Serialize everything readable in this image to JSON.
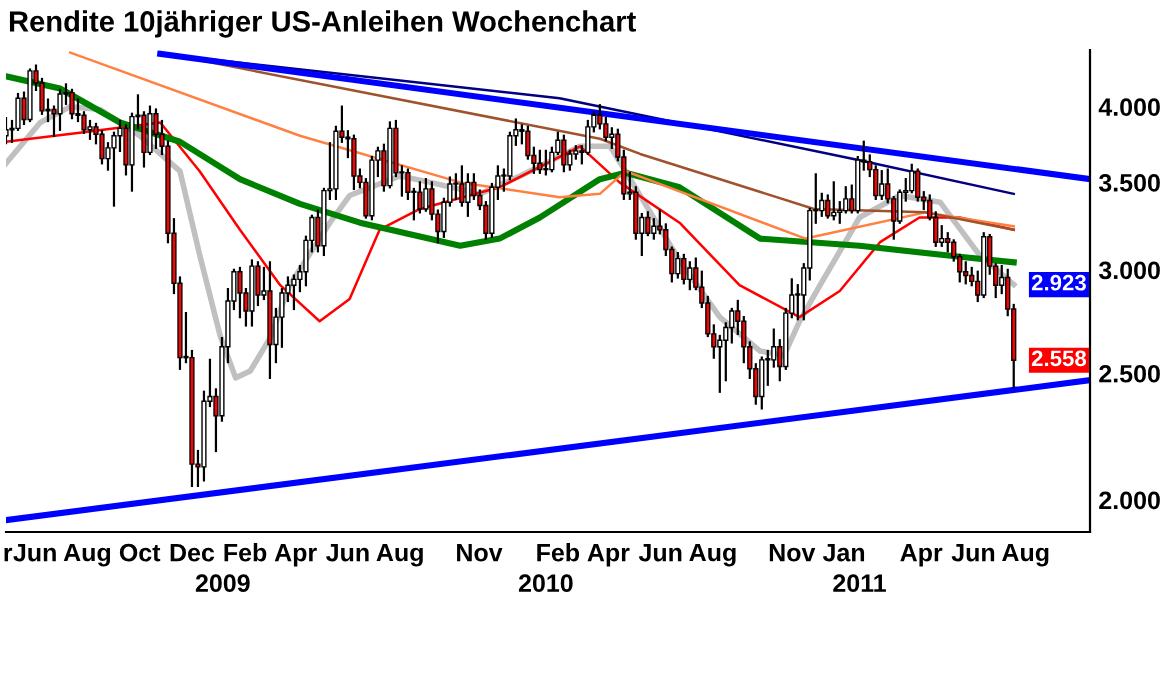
{
  "chart_data": {
    "type": "candlestick",
    "title": "Rendite 10jähriger US-Anleihen Wochenchart",
    "log": "y",
    "grid": false,
    "legend": false,
    "xlim": [
      "2008-05-12",
      "2011-10-29"
    ],
    "ylim": [
      1.89,
      4.42
    ],
    "yticks": [
      {
        "value": 2,
        "label": "2.000"
      },
      {
        "value": 2.5,
        "label": "2.500"
      },
      {
        "value": 3,
        "label": "3.000"
      },
      {
        "value": 3.5,
        "label": "3.500"
      },
      {
        "value": 4,
        "label": "4.000"
      }
    ],
    "xticks": [
      {
        "value": "2008-05-14",
        "label": "r"
      },
      {
        "value": "2008-06-15",
        "label": "Jun"
      },
      {
        "value": "2008-08-15",
        "label": "Aug"
      },
      {
        "value": "2008-10-15",
        "label": "Oct"
      },
      {
        "value": "2008-12-15",
        "label": "Dec"
      },
      {
        "value": "2009-02-15",
        "label": "Feb"
      },
      {
        "value": "2009-04-15",
        "label": "Apr"
      },
      {
        "value": "2009-06-15",
        "label": "Jun"
      },
      {
        "value": "2009-08-15",
        "label": "Aug"
      },
      {
        "value": "2009-11-15",
        "label": "Nov"
      },
      {
        "value": "2010-02-15",
        "label": "Feb"
      },
      {
        "value": "2010-04-15",
        "label": "Apr"
      },
      {
        "value": "2010-06-15",
        "label": "Jun"
      },
      {
        "value": "2010-08-15",
        "label": "Aug"
      },
      {
        "value": "2010-11-15",
        "label": "Nov"
      },
      {
        "value": "2011-01-15",
        "label": "Jan"
      },
      {
        "value": "2011-04-15",
        "label": "Apr"
      },
      {
        "value": "2011-06-15",
        "label": "Jun"
      },
      {
        "value": "2011-08-15",
        "label": "Aug"
      }
    ],
    "x2lim": [
      "2008-05-12",
      "2011-10-29"
    ],
    "x2ticks": [
      {
        "value": "2009-01-20",
        "label": "2009"
      },
      {
        "value": "2010-02-01",
        "label": "2010"
      },
      {
        "value": "2011-02-02",
        "label": "2011"
      }
    ],
    "annotations": [
      {
        "text": "2.923",
        "y": 2.923
      },
      {
        "text": "2.558",
        "y": 2.558
      }
    ],
    "x": [
      "2008-05-12",
      "2008-05-19",
      "2008-05-26",
      "2008-06-02",
      "2008-06-09",
      "2008-06-16",
      "2008-06-23",
      "2008-06-30",
      "2008-07-07",
      "2008-07-14",
      "2008-07-21",
      "2008-07-28",
      "2008-08-04",
      "2008-08-11",
      "2008-08-18",
      "2008-08-25",
      "2008-09-01",
      "2008-09-08",
      "2008-09-15",
      "2008-09-22",
      "2008-09-29",
      "2008-10-06",
      "2008-10-13",
      "2008-10-20",
      "2008-10-27",
      "2008-11-03",
      "2008-11-10",
      "2008-11-17",
      "2008-11-24",
      "2008-12-01",
      "2008-12-08",
      "2008-12-15",
      "2008-12-22",
      "2008-12-29",
      "2009-01-05",
      "2009-01-12",
      "2009-01-19",
      "2009-01-26",
      "2009-02-02",
      "2009-02-09",
      "2009-02-16",
      "2009-02-23",
      "2009-03-02",
      "2009-03-09",
      "2009-03-16",
      "2009-03-23",
      "2009-03-30",
      "2009-04-06",
      "2009-04-13",
      "2009-04-20",
      "2009-04-27",
      "2009-05-04",
      "2009-05-11",
      "2009-05-18",
      "2009-05-25",
      "2009-06-01",
      "2009-06-08",
      "2009-06-15",
      "2009-06-22",
      "2009-06-29",
      "2009-07-06",
      "2009-07-13",
      "2009-07-20",
      "2009-07-27",
      "2009-08-03",
      "2009-08-10",
      "2009-08-17",
      "2009-08-24",
      "2009-08-31",
      "2009-09-07",
      "2009-09-14",
      "2009-09-21",
      "2009-09-28",
      "2009-10-05",
      "2009-10-12",
      "2009-10-19",
      "2009-10-26",
      "2009-11-02",
      "2009-11-09",
      "2009-11-16",
      "2009-11-23",
      "2009-11-30",
      "2009-12-07",
      "2009-12-14",
      "2009-12-21",
      "2009-12-28",
      "2010-01-04",
      "2010-01-11",
      "2010-01-18",
      "2010-01-25",
      "2010-02-01",
      "2010-02-08",
      "2010-02-15",
      "2010-02-22",
      "2010-03-01",
      "2010-03-08",
      "2010-03-15",
      "2010-03-22",
      "2010-03-29",
      "2010-04-05",
      "2010-04-12",
      "2010-04-19",
      "2010-04-26",
      "2010-05-03",
      "2010-05-10",
      "2010-05-17",
      "2010-05-24",
      "2010-05-31",
      "2010-06-07",
      "2010-06-14",
      "2010-06-21",
      "2010-06-28",
      "2010-07-05",
      "2010-07-12",
      "2010-07-19",
      "2010-07-26",
      "2010-08-02",
      "2010-08-09",
      "2010-08-16",
      "2010-08-23",
      "2010-08-30",
      "2010-09-06",
      "2010-09-13",
      "2010-09-20",
      "2010-09-27",
      "2010-10-04",
      "2010-10-11",
      "2010-10-18",
      "2010-10-25",
      "2010-11-01",
      "2010-11-08",
      "2010-11-15",
      "2010-11-22",
      "2010-11-29",
      "2010-12-06",
      "2010-12-13",
      "2010-12-20",
      "2010-12-27",
      "2011-01-03",
      "2011-01-10",
      "2011-01-17",
      "2011-01-24",
      "2011-01-31",
      "2011-02-07",
      "2011-02-14",
      "2011-02-21",
      "2011-02-28",
      "2011-03-07",
      "2011-03-14",
      "2011-03-21",
      "2011-03-28",
      "2011-04-04",
      "2011-04-11",
      "2011-04-18",
      "2011-04-25",
      "2011-05-02",
      "2011-05-09",
      "2011-05-16",
      "2011-05-23",
      "2011-05-30",
      "2011-06-06",
      "2011-06-13",
      "2011-06-20",
      "2011-06-27",
      "2011-07-04",
      "2011-07-11",
      "2011-07-18",
      "2011-07-25",
      "2011-08-01"
    ],
    "ohlc": [
      [
        3.8,
        3.92,
        3.75,
        3.84
      ],
      [
        3.84,
        3.9,
        3.76,
        3.85
      ],
      [
        3.85,
        4.09,
        3.84,
        4.06
      ],
      [
        4.06,
        4.1,
        3.88,
        3.91
      ],
      [
        3.91,
        4.27,
        3.9,
        4.26
      ],
      [
        4.26,
        4.3,
        4.12,
        4.17
      ],
      [
        4.17,
        4.2,
        3.95,
        3.97
      ],
      [
        3.97,
        4.05,
        3.9,
        3.98
      ],
      [
        3.98,
        4.0,
        3.8,
        3.95
      ],
      [
        3.95,
        4.12,
        3.84,
        4.09
      ],
      [
        4.09,
        4.16,
        4.02,
        4.1
      ],
      [
        4.1,
        4.12,
        3.92,
        3.95
      ],
      [
        3.95,
        4.05,
        3.9,
        3.94
      ],
      [
        3.94,
        3.96,
        3.82,
        3.84
      ],
      [
        3.84,
        3.9,
        3.78,
        3.86
      ],
      [
        3.86,
        3.88,
        3.75,
        3.81
      ],
      [
        3.81,
        3.83,
        3.62,
        3.65
      ],
      [
        3.65,
        3.75,
        3.58,
        3.72
      ],
      [
        3.72,
        3.82,
        3.36,
        3.8
      ],
      [
        3.8,
        3.9,
        3.7,
        3.85
      ],
      [
        3.85,
        3.87,
        3.55,
        3.61
      ],
      [
        3.61,
        3.95,
        3.45,
        3.93
      ],
      [
        3.93,
        4.08,
        3.85,
        3.94
      ],
      [
        3.94,
        3.96,
        3.6,
        3.69
      ],
      [
        3.69,
        4.0,
        3.68,
        3.95
      ],
      [
        3.95,
        3.98,
        3.72,
        3.81
      ],
      [
        3.81,
        3.9,
        3.68,
        3.73
      ],
      [
        3.73,
        3.76,
        3.15,
        3.2
      ],
      [
        3.2,
        3.28,
        2.88,
        2.93
      ],
      [
        2.93,
        2.96,
        2.52,
        2.57
      ],
      [
        2.57,
        2.78,
        2.55,
        2.57
      ],
      [
        2.57,
        2.6,
        2.05,
        2.13
      ],
      [
        2.13,
        2.18,
        2.05,
        2.12
      ],
      [
        2.12,
        2.42,
        2.07,
        2.38
      ],
      [
        2.38,
        2.56,
        2.36,
        2.4
      ],
      [
        2.4,
        2.43,
        2.18,
        2.32
      ],
      [
        2.32,
        2.66,
        2.3,
        2.62
      ],
      [
        2.62,
        2.9,
        2.55,
        2.84
      ],
      [
        2.84,
        3.0,
        2.8,
        2.99
      ],
      [
        2.99,
        3.01,
        2.76,
        2.88
      ],
      [
        2.88,
        2.9,
        2.72,
        2.79
      ],
      [
        2.79,
        3.05,
        2.72,
        3.02
      ],
      [
        3.02,
        3.04,
        2.82,
        2.87
      ],
      [
        2.87,
        3.01,
        2.85,
        2.89
      ],
      [
        2.89,
        3.04,
        2.48,
        2.63
      ],
      [
        2.63,
        2.8,
        2.55,
        2.76
      ],
      [
        2.76,
        2.9,
        2.62,
        2.88
      ],
      [
        2.88,
        2.96,
        2.84,
        2.92
      ],
      [
        2.92,
        2.97,
        2.8,
        2.95
      ],
      [
        2.95,
        3.02,
        2.89,
        2.99
      ],
      [
        2.99,
        3.18,
        2.92,
        3.16
      ],
      [
        3.16,
        3.3,
        3.1,
        3.29
      ],
      [
        3.29,
        3.33,
        3.1,
        3.13
      ],
      [
        3.13,
        3.46,
        3.08,
        3.45
      ],
      [
        3.45,
        3.75,
        3.4,
        3.46
      ],
      [
        3.46,
        3.86,
        3.4,
        3.83
      ],
      [
        3.83,
        4.0,
        3.76,
        3.79
      ],
      [
        3.79,
        3.83,
        3.66,
        3.78
      ],
      [
        3.78,
        3.8,
        3.46,
        3.54
      ],
      [
        3.54,
        3.58,
        3.47,
        3.5
      ],
      [
        3.5,
        3.52,
        3.29,
        3.3
      ],
      [
        3.3,
        3.66,
        3.28,
        3.64
      ],
      [
        3.64,
        3.72,
        3.54,
        3.7
      ],
      [
        3.7,
        3.74,
        3.45,
        3.48
      ],
      [
        3.48,
        3.89,
        3.47,
        3.85
      ],
      [
        3.85,
        3.9,
        3.54,
        3.56
      ],
      [
        3.56,
        3.6,
        3.42,
        3.56
      ],
      [
        3.56,
        3.58,
        3.4,
        3.44
      ],
      [
        3.44,
        3.46,
        3.28,
        3.44
      ],
      [
        3.44,
        3.5,
        3.32,
        3.34
      ],
      [
        3.34,
        3.52,
        3.33,
        3.46
      ],
      [
        3.46,
        3.5,
        3.28,
        3.31
      ],
      [
        3.31,
        3.33,
        3.15,
        3.21
      ],
      [
        3.21,
        3.4,
        3.18,
        3.38
      ],
      [
        3.38,
        3.53,
        3.36,
        3.49
      ],
      [
        3.49,
        3.55,
        3.4,
        3.49
      ],
      [
        3.49,
        3.6,
        3.36,
        3.38
      ],
      [
        3.38,
        3.55,
        3.3,
        3.5
      ],
      [
        3.5,
        3.55,
        3.4,
        3.42
      ],
      [
        3.42,
        3.45,
        3.34,
        3.36
      ],
      [
        3.36,
        3.38,
        3.17,
        3.2
      ],
      [
        3.2,
        3.49,
        3.18,
        3.47
      ],
      [
        3.47,
        3.6,
        3.4,
        3.54
      ],
      [
        3.54,
        3.58,
        3.45,
        3.54
      ],
      [
        3.54,
        3.82,
        3.52,
        3.8
      ],
      [
        3.8,
        3.91,
        3.74,
        3.84
      ],
      [
        3.84,
        3.87,
        3.75,
        3.83
      ],
      [
        3.83,
        3.86,
        3.65,
        3.67
      ],
      [
        3.67,
        3.72,
        3.56,
        3.62
      ],
      [
        3.62,
        3.7,
        3.56,
        3.58
      ],
      [
        3.58,
        3.7,
        3.55,
        3.58
      ],
      [
        3.58,
        3.72,
        3.57,
        3.69
      ],
      [
        3.69,
        3.82,
        3.68,
        3.77
      ],
      [
        3.77,
        3.8,
        3.57,
        3.61
      ],
      [
        3.61,
        3.7,
        3.58,
        3.68
      ],
      [
        3.68,
        3.73,
        3.65,
        3.7
      ],
      [
        3.7,
        3.73,
        3.62,
        3.69
      ],
      [
        3.69,
        3.9,
        3.68,
        3.86
      ],
      [
        3.86,
        3.96,
        3.83,
        3.94
      ],
      [
        3.94,
        4.01,
        3.85,
        3.88
      ],
      [
        3.88,
        3.92,
        3.77,
        3.79
      ],
      [
        3.79,
        3.85,
        3.72,
        3.81
      ],
      [
        3.81,
        3.84,
        3.64,
        3.66
      ],
      [
        3.66,
        3.7,
        3.4,
        3.43
      ],
      [
        3.43,
        3.56,
        3.4,
        3.44
      ],
      [
        3.44,
        3.47,
        3.17,
        3.2
      ],
      [
        3.2,
        3.31,
        3.08,
        3.29
      ],
      [
        3.29,
        3.32,
        3.19,
        3.2
      ],
      [
        3.2,
        3.28,
        3.17,
        3.24
      ],
      [
        3.24,
        3.33,
        3.2,
        3.22
      ],
      [
        3.22,
        3.25,
        3.08,
        3.11
      ],
      [
        3.11,
        3.12,
        2.94,
        2.98
      ],
      [
        2.98,
        3.09,
        2.96,
        3.06
      ],
      [
        3.06,
        3.08,
        2.93,
        2.95
      ],
      [
        2.95,
        3.04,
        2.9,
        3.01
      ],
      [
        3.01,
        3.06,
        2.9,
        2.91
      ],
      [
        2.91,
        2.99,
        2.81,
        2.83
      ],
      [
        2.83,
        2.86,
        2.67,
        2.68
      ],
      [
        2.68,
        2.72,
        2.57,
        2.62
      ],
      [
        2.62,
        2.67,
        2.42,
        2.65
      ],
      [
        2.65,
        2.73,
        2.47,
        2.71
      ],
      [
        2.71,
        2.8,
        2.64,
        2.79
      ],
      [
        2.79,
        2.84,
        2.68,
        2.74
      ],
      [
        2.74,
        2.76,
        2.55,
        2.62
      ],
      [
        2.62,
        2.64,
        2.48,
        2.52
      ],
      [
        2.52,
        2.54,
        2.37,
        2.4
      ],
      [
        2.4,
        2.57,
        2.35,
        2.56
      ],
      [
        2.56,
        2.6,
        2.45,
        2.56
      ],
      [
        2.56,
        2.7,
        2.53,
        2.62
      ],
      [
        2.62,
        2.65,
        2.47,
        2.53
      ],
      [
        2.53,
        2.8,
        2.52,
        2.78
      ],
      [
        2.78,
        2.95,
        2.76,
        2.87
      ],
      [
        2.87,
        2.92,
        2.75,
        2.87
      ],
      [
        2.87,
        3.03,
        2.75,
        3.01
      ],
      [
        3.01,
        3.34,
        2.95,
        3.33
      ],
      [
        3.33,
        3.55,
        3.26,
        3.33
      ],
      [
        3.33,
        3.43,
        3.3,
        3.39
      ],
      [
        3.39,
        3.42,
        3.29,
        3.3
      ],
      [
        3.3,
        3.5,
        3.28,
        3.32
      ],
      [
        3.32,
        3.38,
        3.26,
        3.33
      ],
      [
        3.33,
        3.47,
        3.32,
        3.4
      ],
      [
        3.4,
        3.48,
        3.32,
        3.33
      ],
      [
        3.33,
        3.66,
        3.32,
        3.64
      ],
      [
        3.64,
        3.76,
        3.58,
        3.63
      ],
      [
        3.63,
        3.67,
        3.54,
        3.58
      ],
      [
        3.58,
        3.6,
        3.4,
        3.42
      ],
      [
        3.42,
        3.57,
        3.4,
        3.49
      ],
      [
        3.49,
        3.58,
        3.38,
        3.4
      ],
      [
        3.4,
        3.41,
        3.17,
        3.27
      ],
      [
        3.27,
        3.45,
        3.26,
        3.44
      ],
      [
        3.44,
        3.52,
        3.39,
        3.45
      ],
      [
        3.45,
        3.61,
        3.44,
        3.57
      ],
      [
        3.57,
        3.58,
        3.39,
        3.41
      ],
      [
        3.41,
        3.44,
        3.34,
        3.39
      ],
      [
        3.39,
        3.42,
        3.28,
        3.29
      ],
      [
        3.29,
        3.32,
        3.13,
        3.15
      ],
      [
        3.15,
        3.24,
        3.13,
        3.17
      ],
      [
        3.17,
        3.2,
        3.1,
        3.15
      ],
      [
        3.15,
        3.16,
        3.05,
        3.07
      ],
      [
        3.07,
        3.08,
        2.94,
        2.99
      ],
      [
        2.99,
        3.04,
        2.93,
        2.97
      ],
      [
        2.97,
        3.01,
        2.92,
        2.94
      ],
      [
        2.94,
        2.99,
        2.84,
        2.87
      ],
      [
        2.87,
        3.2,
        2.86,
        3.18
      ],
      [
        3.18,
        3.19,
        2.98,
        3.02
      ],
      [
        3.02,
        3.03,
        2.86,
        2.92
      ],
      [
        2.92,
        3.02,
        2.88,
        2.96
      ],
      [
        2.96,
        3.0,
        2.77,
        2.8
      ],
      [
        2.8,
        2.82,
        2.44,
        2.558
      ]
    ],
    "series": [
      {
        "type": "line",
        "color": "#c0c0c0",
        "x": [
          "2008-05-12",
          "2008-06-21",
          "2008-07-26",
          "2008-08-30",
          "2008-10-15",
          "2008-12-01",
          "2008-12-24",
          "2009-01-17",
          "2009-02-04",
          "2009-02-21",
          "2009-03-16",
          "2009-04-08",
          "2009-05-25",
          "2009-06-17",
          "2009-08-15",
          "2009-09-19",
          "2009-11-16",
          "2010-01-02",
          "2010-03-13",
          "2010-04-17",
          "2010-05-22",
          "2010-07-07",
          "2010-08-23",
          "2010-10-09",
          "2010-11-06",
          "2010-11-24",
          "2010-12-18",
          "2011-02-02",
          "2011-03-21",
          "2011-05-07",
          "2011-06-22",
          "2011-08-01"
        ],
        "values": [
          3.62,
          3.89,
          4.0,
          3.98,
          3.8,
          3.57,
          3.08,
          2.67,
          2.48,
          2.51,
          2.66,
          2.92,
          3.26,
          3.42,
          3.54,
          3.5,
          3.43,
          3.54,
          3.73,
          3.73,
          3.42,
          3.05,
          2.76,
          2.6,
          2.58,
          2.74,
          2.92,
          3.29,
          3.42,
          3.38,
          3.08,
          2.923
        ]
      },
      {
        "type": "line",
        "color": "#ff0000",
        "x": [
          "2008-05-12",
          "2008-08-06",
          "2008-11-08",
          "2008-12-24",
          "2009-02-09",
          "2009-03-28",
          "2009-05-13",
          "2009-06-17",
          "2009-07-22",
          "2009-09-07",
          "2009-12-09",
          "2010-03-13",
          "2010-04-28",
          "2010-07-07",
          "2010-09-15",
          "2010-11-24",
          "2011-01-10",
          "2011-02-26",
          "2011-04-13",
          "2011-05-30",
          "2011-08-01"
        ],
        "values": [
          3.76,
          3.82,
          3.89,
          3.57,
          3.22,
          2.92,
          2.74,
          2.85,
          3.22,
          3.34,
          3.47,
          3.73,
          3.5,
          3.26,
          2.92,
          2.76,
          2.89,
          3.15,
          3.29,
          3.29,
          3.22
        ]
      },
      {
        "type": "line",
        "color": "#008000",
        "x": [
          "2008-05-12",
          "2008-07-14",
          "2008-09-22",
          "2008-12-01",
          "2009-02-09",
          "2009-04-20",
          "2009-06-29",
          "2009-10-24",
          "2009-12-09",
          "2010-01-25",
          "2010-04-05",
          "2010-05-05",
          "2010-07-07",
          "2010-10-09",
          "2011-02-02",
          "2011-05-30",
          "2011-08-01"
        ],
        "values": [
          4.22,
          4.13,
          3.89,
          3.76,
          3.52,
          3.37,
          3.26,
          3.13,
          3.17,
          3.29,
          3.52,
          3.56,
          3.47,
          3.17,
          3.13,
          3.07,
          3.04
        ]
      },
      {
        "type": "line",
        "color": "#ff8040",
        "x": [
          "2008-07-26",
          "2009-04-20",
          "2009-10-24",
          "2010-02-17",
          "2010-04-05",
          "2010-05-05",
          "2010-12-01",
          "2011-04-20",
          "2011-08-01"
        ],
        "values": [
          4.4,
          3.8,
          3.5,
          3.41,
          3.43,
          3.57,
          3.17,
          3.32,
          3.24
        ]
      },
      {
        "type": "line",
        "color": "#a0522d",
        "x": [
          "2008-11-08",
          "2010-04-05",
          "2010-05-22",
          "2010-12-11",
          "2011-04-20",
          "2011-08-01"
        ],
        "values": [
          4.4,
          3.78,
          3.68,
          3.34,
          3.32,
          3.22
        ]
      },
      {
        "type": "line",
        "color": "#000080",
        "x": [
          "2008-11-08",
          "2010-02-17",
          "2011-02-02",
          "2011-08-01"
        ],
        "values": [
          4.39,
          4.06,
          3.64,
          3.43
        ]
      },
      {
        "type": "line",
        "color": "#0000ff",
        "x": [
          "2008-11-08",
          "2011-10-29"
        ],
        "values": [
          4.39,
          3.52
        ]
      },
      {
        "type": "line",
        "color": "#0000ff",
        "x": [
          "2008-05-12",
          "2011-10-29"
        ],
        "values": [
          1.93,
          2.47
        ]
      }
    ]
  }
}
